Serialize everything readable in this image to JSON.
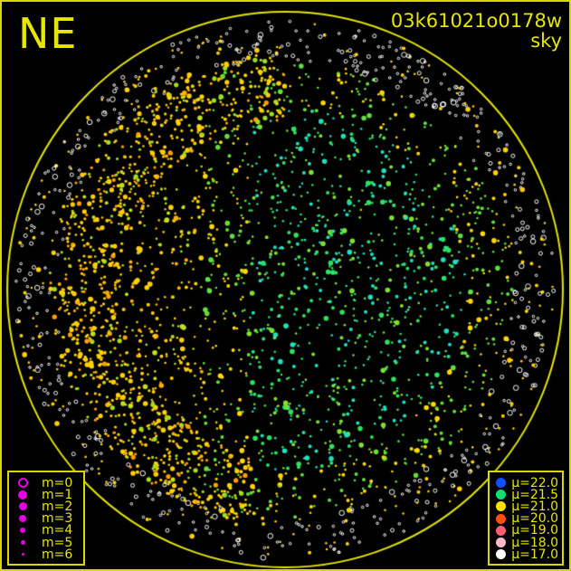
{
  "direction_label": "NE",
  "title": {
    "frame_id": "03k61021o0178w",
    "subtitle": "sky"
  },
  "colors": {
    "frame": "#e6e600",
    "legend_text": "#e6e600",
    "magnitude_symbol": "#e600e6"
  },
  "magnitude_legend": [
    {
      "label": "m=0",
      "style": "ring"
    },
    {
      "label": "m=1",
      "style": "filled"
    },
    {
      "label": "m=2",
      "style": "filled"
    },
    {
      "label": "m=3",
      "style": "filled"
    },
    {
      "label": "m=4",
      "style": "filled"
    },
    {
      "label": "m=5",
      "style": "filled"
    },
    {
      "label": "m=6",
      "style": "filled"
    }
  ],
  "sky_brightness_legend": [
    {
      "label": "μ=22.0",
      "color": "#1050ff"
    },
    {
      "label": "μ=21.5",
      "color": "#10e070"
    },
    {
      "label": "μ=21.0",
      "color": "#ffe000"
    },
    {
      "label": "μ=20.0",
      "color": "#ff5010"
    },
    {
      "label": "μ=19.0",
      "color": "#ff6070"
    },
    {
      "label": "μ=18.0",
      "color": "#ffb8c8"
    },
    {
      "label": "μ=17.0",
      "color": "#ffffff"
    }
  ]
}
